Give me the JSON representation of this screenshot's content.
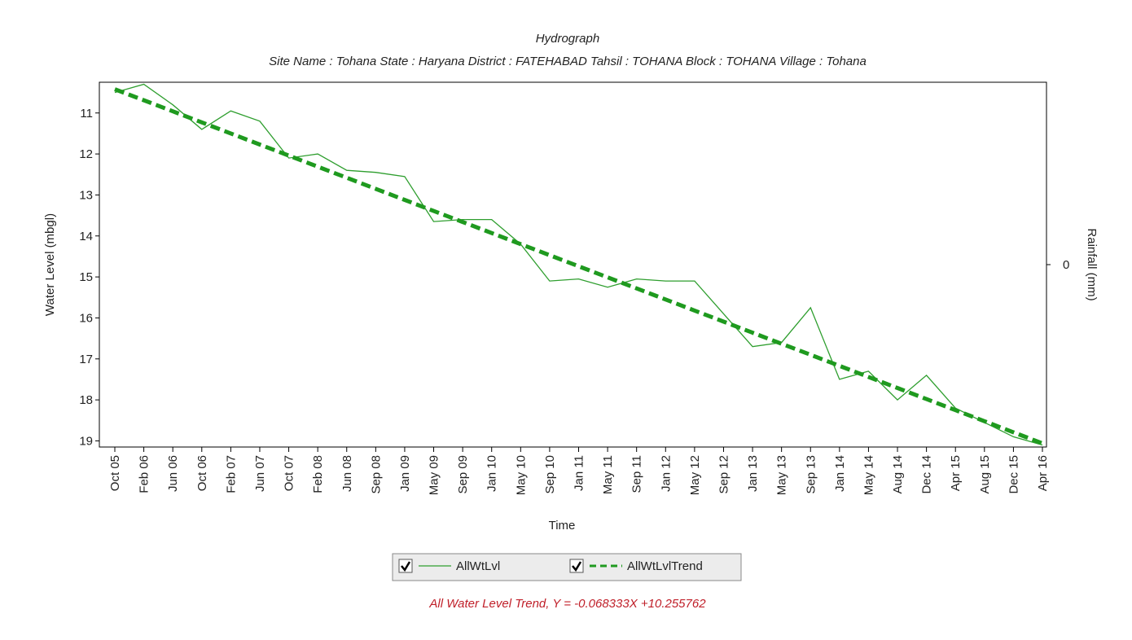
{
  "chart_data": {
    "type": "line",
    "title": "Hydrograph",
    "subtitle": "Site Name : Tohana  State : Haryana District : FATEHABAD  Tahsil : TOHANA  Block : TOHANA Village : Tohana",
    "x_label": "Time",
    "y_label": "Water Level (mbgl)",
    "y2_label": "Rainfall (mm)",
    "annotation": "All Water Level Trend, Y = -0.068333X +10.255762",
    "x": [
      "Oct 05",
      "Feb 06",
      "Jun 06",
      "Oct 06",
      "Feb 07",
      "Jun 07",
      "Oct 07",
      "Feb 08",
      "Jun 08",
      "Sep 08",
      "Jan 09",
      "May 09",
      "Sep 09",
      "Jan 10",
      "May 10",
      "Sep 10",
      "Jan 11",
      "May 11",
      "Sep 11",
      "Jan 12",
      "May 12",
      "Sep 12",
      "Jan 13",
      "May 13",
      "Sep 13",
      "Jan 14",
      "May 14",
      "Aug 14",
      "Dec 14",
      "Apr 15",
      "Aug 15",
      "Dec 15",
      "Apr 16"
    ],
    "series": [
      {
        "name": "AllWtLvl",
        "color": "#2e9e2e",
        "style": "solid",
        "values": [
          10.5,
          10.3,
          10.8,
          11.4,
          10.95,
          11.2,
          12.1,
          12.0,
          12.4,
          12.45,
          12.55,
          13.65,
          13.6,
          13.6,
          14.2,
          15.1,
          15.05,
          15.25,
          15.05,
          15.1,
          15.1,
          15.9,
          16.7,
          16.6,
          15.75,
          17.5,
          17.3,
          18.0,
          17.4,
          18.2,
          18.55,
          18.9,
          19.1
        ]
      },
      {
        "name": "AllWtLvlTrend",
        "color": "#1f9a1f",
        "style": "dashed",
        "values": [
          10.42,
          10.69,
          10.96,
          11.23,
          11.5,
          11.77,
          12.04,
          12.31,
          12.58,
          12.85,
          13.12,
          13.39,
          13.66,
          13.93,
          14.2,
          14.47,
          14.74,
          15.01,
          15.28,
          15.55,
          15.82,
          16.09,
          16.36,
          16.63,
          16.9,
          17.17,
          17.44,
          17.71,
          17.98,
          18.25,
          18.52,
          18.79,
          19.06
        ]
      }
    ],
    "ylim": [
      10.25,
      19.15
    ],
    "y_inverted": true,
    "yticks": [
      11,
      12,
      13,
      14,
      15,
      16,
      17,
      18,
      19
    ],
    "y2lim": [
      -1,
      1
    ],
    "y2ticks": [
      0
    ],
    "annotation_color": "#c0202a"
  }
}
